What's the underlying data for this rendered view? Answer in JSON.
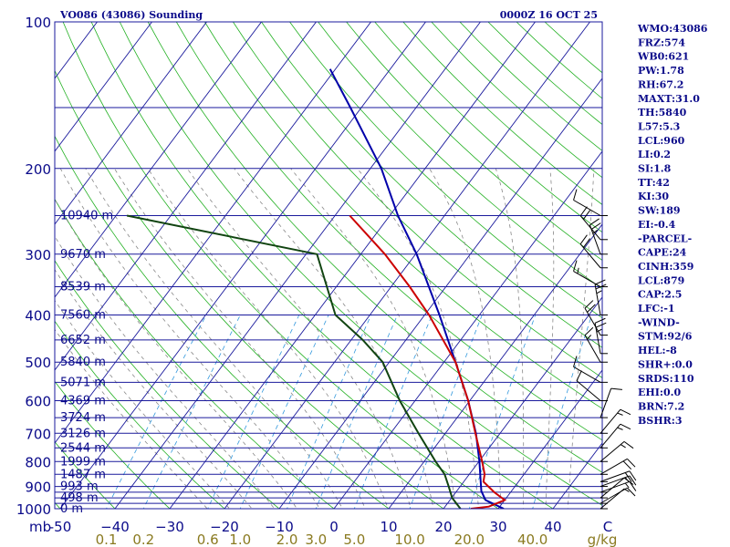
{
  "header": {
    "station": "VO086 (43086) Sounding",
    "time": "0000Z 16 OCT 25"
  },
  "indices": [
    "WMO:43086",
    "FRZ:574",
    "WB0:621",
    "PW:1.78",
    "RH:67.2",
    "MAXT:31.0",
    "TH:5840",
    "L57:5.3",
    "LCL:960",
    "LI:0.2",
    "SI:1.8",
    "TT:42",
    "KI:30",
    "SW:189",
    "EI:-0.4",
    "-PARCEL-",
    "CAPE:24",
    "CINH:359",
    "LCL:879",
    "CAP:2.5",
    "LFC:-1",
    "-WIND-",
    "STM:92/6",
    "HEL:-8",
    "SHR+:0.0",
    "SRDS:110",
    "EHI:0.0",
    "BRN:7.2",
    "BSHR:3"
  ],
  "colors": {
    "text": "#0a0a8a",
    "isobar": "#1a1a9c",
    "isotherm": "#1a1a9c",
    "dry_adiabat": "#22b022",
    "moist_adiabat": "#888888",
    "mixing_ratio": "#3399dd",
    "temperature": "#cc0000",
    "dewpoint": "#114411",
    "parcel": "#0000aa",
    "wind_barb": "#000000",
    "mixing_ratio_label": "#8a7a20"
  },
  "chart_data": {
    "type": "skew-t log-p",
    "x_axis_label": "mb",
    "mixing_ratio_unit": "g/kg",
    "pressure_range": [
      1000,
      100
    ],
    "temperature_range": [
      -50,
      50
    ],
    "pressure_ticks": [
      {
        "p": 100,
        "label": "100"
      },
      {
        "p": 200,
        "label": "200"
      },
      {
        "p": 300,
        "label": "300"
      },
      {
        "p": 400,
        "label": "400"
      },
      {
        "p": 500,
        "label": "500"
      },
      {
        "p": 600,
        "label": "600"
      },
      {
        "p": 700,
        "label": "700"
      },
      {
        "p": 800,
        "label": "800"
      },
      {
        "p": 900,
        "label": "900"
      },
      {
        "p": 1000,
        "label": "1000"
      }
    ],
    "temperature_ticks": [
      {
        "t": -50,
        "label": "-50"
      },
      {
        "t": -40,
        "label": "−40"
      },
      {
        "t": -30,
        "label": "−30"
      },
      {
        "t": -20,
        "label": "−20"
      },
      {
        "t": -10,
        "label": "−10"
      },
      {
        "t": 0,
        "label": "0"
      },
      {
        "t": 10,
        "label": "10"
      },
      {
        "t": 20,
        "label": "20"
      },
      {
        "t": 30,
        "label": "30"
      },
      {
        "t": 40,
        "label": "40"
      },
      {
        "t": 50,
        "label": "C"
      }
    ],
    "mixing_ratio_labels": [
      {
        "w": 0.1,
        "label": "0.1"
      },
      {
        "w": 0.2,
        "label": "0.2"
      },
      {
        "w": 0.6,
        "label": "0.6"
      },
      {
        "w": 1.0,
        "label": "1.0"
      },
      {
        "w": 2.0,
        "label": "2.0"
      },
      {
        "w": 3.0,
        "label": "3.0"
      },
      {
        "w": 5.0,
        "label": "5.0"
      },
      {
        "w": 10.0,
        "label": "10.0"
      },
      {
        "w": 20.0,
        "label": "20.0"
      },
      {
        "w": 40.0,
        "label": "40.0"
      }
    ],
    "height_labels": [
      {
        "p": 250,
        "label": "10940 m"
      },
      {
        "p": 300,
        "label": "9670 m"
      },
      {
        "p": 350,
        "label": "8539 m"
      },
      {
        "p": 400,
        "label": "7560 m"
      },
      {
        "p": 450,
        "label": "6652 m"
      },
      {
        "p": 500,
        "label": "5840 m"
      },
      {
        "p": 550,
        "label": "5071 m"
      },
      {
        "p": 600,
        "label": "4369 m"
      },
      {
        "p": 650,
        "label": "3724 m"
      },
      {
        "p": 700,
        "label": "3126 m"
      },
      {
        "p": 750,
        "label": "2544 m"
      },
      {
        "p": 800,
        "label": "1999 m"
      },
      {
        "p": 850,
        "label": "1487 m"
      },
      {
        "p": 900,
        "label": "993 m"
      },
      {
        "p": 950,
        "label": "498 m"
      },
      {
        "p": 1000,
        "label": "0 m"
      }
    ],
    "temperature_profile": [
      {
        "p": 1000,
        "t": 25
      },
      {
        "p": 990,
        "t": 28
      },
      {
        "p": 960,
        "t": 30
      },
      {
        "p": 925,
        "t": 27
      },
      {
        "p": 880,
        "t": 23.6
      },
      {
        "p": 850,
        "t": 22.8
      },
      {
        "p": 800,
        "t": 20.6
      },
      {
        "p": 700,
        "t": 15.5
      },
      {
        "p": 600,
        "t": 9.7
      },
      {
        "p": 500,
        "t": 2.1
      },
      {
        "p": 400,
        "t": -9.2
      },
      {
        "p": 350,
        "t": -16.6
      },
      {
        "p": 300,
        "t": -25.6
      },
      {
        "p": 250,
        "t": -37.3
      }
    ],
    "dewpoint_profile": [
      {
        "p": 1000,
        "t": 23.1
      },
      {
        "p": 950,
        "t": 20.1
      },
      {
        "p": 900,
        "t": 17.9
      },
      {
        "p": 850,
        "t": 15.5
      },
      {
        "p": 800,
        "t": 12.1
      },
      {
        "p": 700,
        "t": 5.1
      },
      {
        "p": 600,
        "t": -2.8
      },
      {
        "p": 500,
        "t": -11.2
      },
      {
        "p": 450,
        "t": -17.9
      },
      {
        "p": 400,
        "t": -26.3
      },
      {
        "p": 300,
        "t": -38
      },
      {
        "p": 250,
        "t": -78
      }
    ],
    "parcel_profile": [
      {
        "p": 1000,
        "t": 31
      },
      {
        "p": 960,
        "t": 26.5
      },
      {
        "p": 920,
        "t": 24.5
      },
      {
        "p": 880,
        "t": 23.1
      },
      {
        "p": 850,
        "t": 22
      },
      {
        "p": 800,
        "t": 20.1
      },
      {
        "p": 700,
        "t": 15.6
      },
      {
        "p": 600,
        "t": 9.7
      },
      {
        "p": 500,
        "t": 2.1
      },
      {
        "p": 400,
        "t": -7.3
      },
      {
        "p": 300,
        "t": -19.8
      },
      {
        "p": 250,
        "t": -28.5
      },
      {
        "p": 200,
        "t": -38
      },
      {
        "p": 150,
        "t": -52
      },
      {
        "p": 125,
        "t": -61
      }
    ],
    "wind_barbs": [
      {
        "p": 250,
        "dir": 300,
        "spd": 10
      },
      {
        "p": 280,
        "dir": 320,
        "spd": 20
      },
      {
        "p": 300,
        "dir": 340,
        "spd": 25
      },
      {
        "p": 320,
        "dir": 320,
        "spd": 20
      },
      {
        "p": 350,
        "dir": 300,
        "spd": 15
      },
      {
        "p": 400,
        "dir": 350,
        "spd": 25
      },
      {
        "p": 440,
        "dir": 330,
        "spd": 20
      },
      {
        "p": 480,
        "dir": 350,
        "spd": 25
      },
      {
        "p": 500,
        "dir": 330,
        "spd": 15
      },
      {
        "p": 550,
        "dir": 300,
        "spd": 10
      },
      {
        "p": 600,
        "dir": 310,
        "spd": 10
      },
      {
        "p": 650,
        "dir": 20,
        "spd": 10
      },
      {
        "p": 700,
        "dir": 40,
        "spd": 15
      },
      {
        "p": 750,
        "dir": 40,
        "spd": 15
      },
      {
        "p": 800,
        "dir": 50,
        "spd": 15
      },
      {
        "p": 850,
        "dir": 60,
        "spd": 20
      },
      {
        "p": 880,
        "dir": 70,
        "spd": 20
      },
      {
        "p": 900,
        "dir": 70,
        "spd": 15
      },
      {
        "p": 925,
        "dir": 70,
        "spd": 15
      },
      {
        "p": 950,
        "dir": 50,
        "spd": 10
      },
      {
        "p": 975,
        "dir": 60,
        "spd": 10
      },
      {
        "p": 1000,
        "dir": 50,
        "spd": 5
      }
    ]
  }
}
